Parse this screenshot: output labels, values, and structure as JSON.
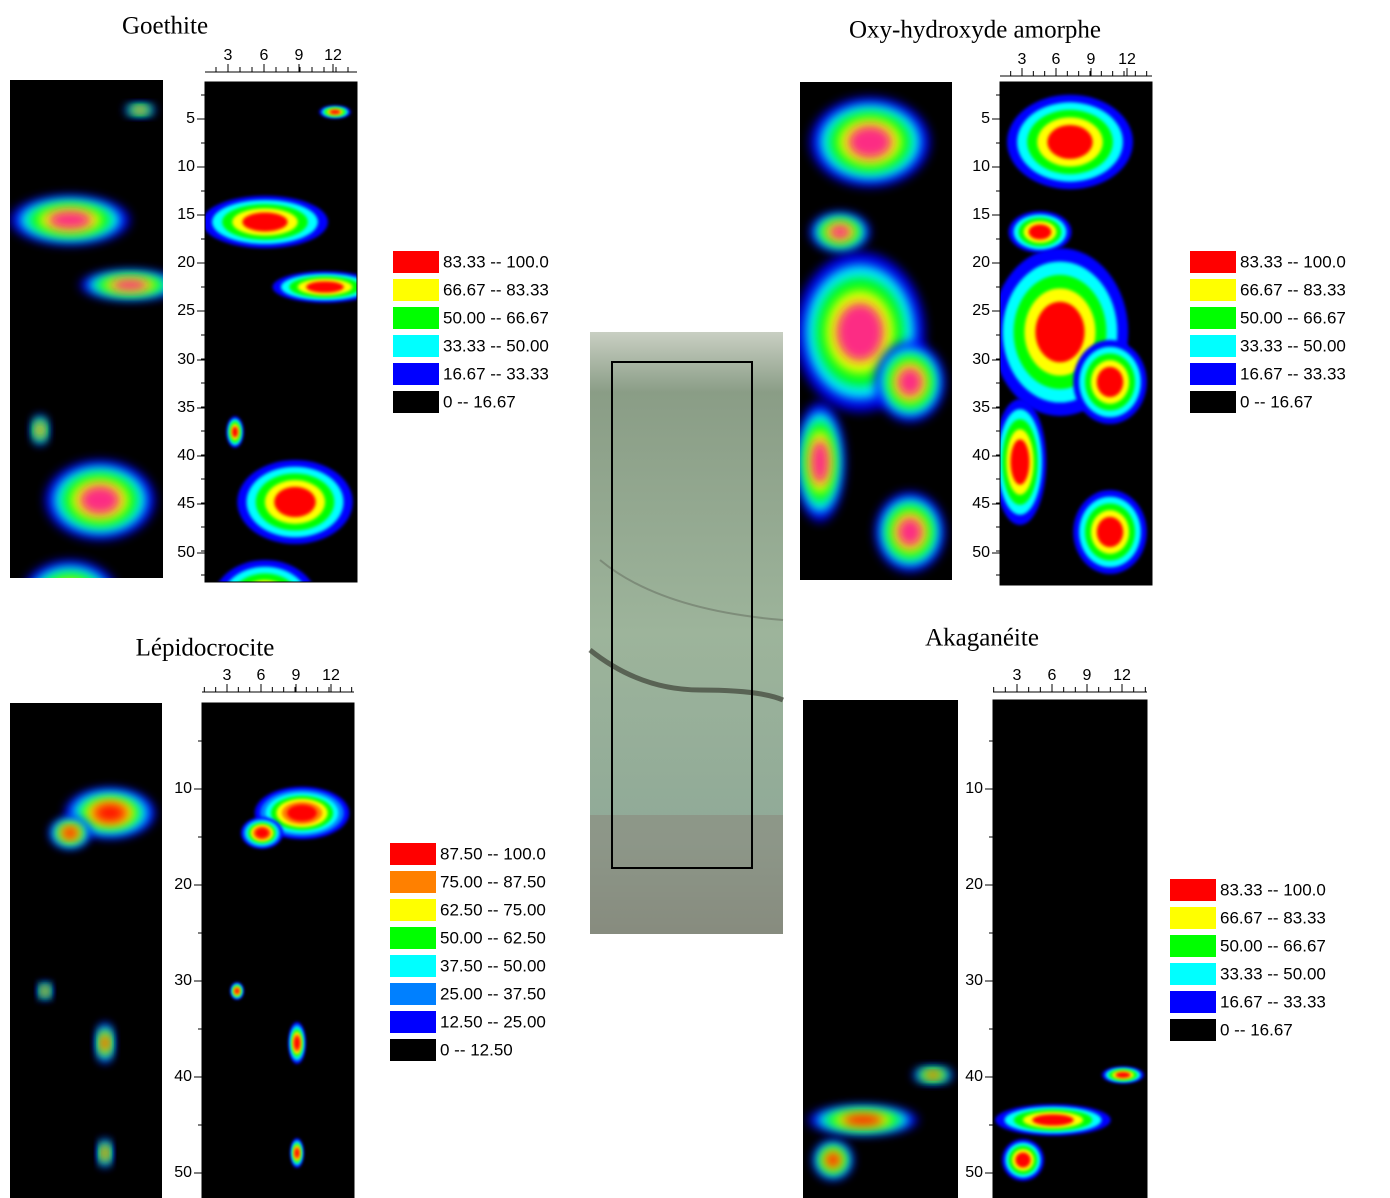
{
  "panels": [
    {
      "title": "Goethite",
      "xticks": [
        "3",
        "6",
        "9",
        "12"
      ],
      "yticks": [
        "5",
        "10",
        "15",
        "20",
        "25",
        "30",
        "35",
        "40",
        "45",
        "50"
      ],
      "legend": [
        {
          "color": "#ff0000",
          "label": "83.33  --  100.0"
        },
        {
          "color": "#ffff00",
          "label": "66.67  --  83.33"
        },
        {
          "color": "#00ff00",
          "label": "50.00  --  66.67"
        },
        {
          "color": "#00ffff",
          "label": "33.33  --  50.00"
        },
        {
          "color": "#0000ff",
          "label": "16.67  --  33.33"
        },
        {
          "color": "#000000",
          "label": "0  --  16.67"
        }
      ]
    },
    {
      "title": "Oxy-hydroxyde amorphe",
      "xticks": [
        "3",
        "6",
        "9",
        "12"
      ],
      "yticks": [
        "5",
        "10",
        "15",
        "20",
        "25",
        "30",
        "35",
        "40",
        "45",
        "50"
      ],
      "legend": [
        {
          "color": "#ff0000",
          "label": "83.33  --  100.0"
        },
        {
          "color": "#ffff00",
          "label": "66.67  --  83.33"
        },
        {
          "color": "#00ff00",
          "label": "50.00  --  66.67"
        },
        {
          "color": "#00ffff",
          "label": "33.33  --  50.00"
        },
        {
          "color": "#0000ff",
          "label": "16.67  --  33.33"
        },
        {
          "color": "#000000",
          "label": "0  --  16.67"
        }
      ]
    },
    {
      "title": "Lépidocrocite",
      "xticks": [
        "3",
        "6",
        "9",
        "12"
      ],
      "yticks": [
        "10",
        "20",
        "30",
        "40",
        "50"
      ],
      "legend": [
        {
          "color": "#ff0000",
          "label": "87.50  --  100.0"
        },
        {
          "color": "#ff8000",
          "label": "75.00  --  87.50"
        },
        {
          "color": "#ffff00",
          "label": "62.50  --  75.00"
        },
        {
          "color": "#00ff00",
          "label": "50.00  --  62.50"
        },
        {
          "color": "#00ffff",
          "label": "37.50  --  50.00"
        },
        {
          "color": "#0080ff",
          "label": "25.00  --  37.50"
        },
        {
          "color": "#0000ff",
          "label": "12.50  --  25.00"
        },
        {
          "color": "#000000",
          "label": "0  --  12.50"
        }
      ]
    },
    {
      "title": "Akaganéite",
      "xticks": [
        "3",
        "6",
        "9",
        "12"
      ],
      "yticks": [
        "10",
        "20",
        "30",
        "40",
        "50"
      ],
      "legend": [
        {
          "color": "#ff0000",
          "label": "83.33  --  100.0"
        },
        {
          "color": "#ffff00",
          "label": "66.67  --  83.33"
        },
        {
          "color": "#00ff00",
          "label": "50.00  --  66.67"
        },
        {
          "color": "#00ffff",
          "label": "33.33  --  50.00"
        },
        {
          "color": "#0000ff",
          "label": "16.67  --  33.33"
        },
        {
          "color": "#000000",
          "label": "0  --  16.67"
        }
      ]
    }
  ]
}
